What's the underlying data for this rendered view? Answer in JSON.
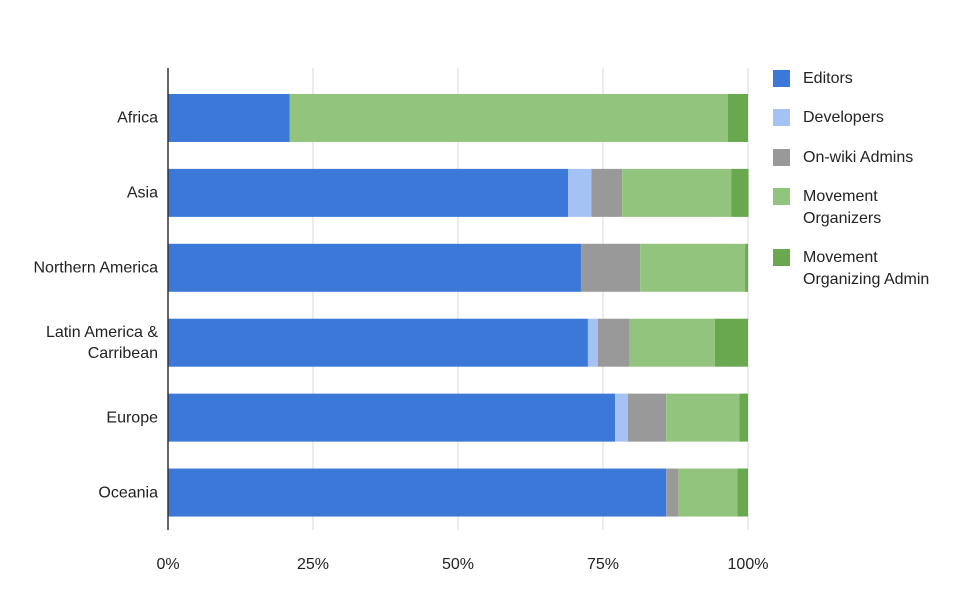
{
  "chart_data": {
    "type": "stacked-bar-horizontal",
    "categories": [
      "Africa",
      "Asia",
      "Northern America",
      "Latin America & Carribean",
      "Europe",
      "Oceania"
    ],
    "series": [
      {
        "name": "Editors",
        "color": "#3c78d8",
        "values": [
          21,
          69,
          71.2,
          72.4,
          77.1,
          85.9
        ]
      },
      {
        "name": "Developers",
        "color": "#a4c2f4",
        "values": [
          0,
          4,
          0,
          1.7,
          2.2,
          0
        ]
      },
      {
        "name": "On-wiki Admins",
        "color": "#999999",
        "values": [
          0,
          5.3,
          10.2,
          5.5,
          6.6,
          2.1
        ]
      },
      {
        "name": "Movement Organizers",
        "color": "#93c47d",
        "values": [
          75.5,
          18.8,
          18.1,
          14.7,
          12.6,
          10.2
        ]
      },
      {
        "name": "Movement Organizing Admin",
        "color": "#6aa84f",
        "values": [
          3.5,
          3,
          0.5,
          5.7,
          1.5,
          1.8
        ]
      }
    ],
    "xlim": [
      0,
      100
    ],
    "xticks": [
      {
        "value": 0,
        "label": "0%"
      },
      {
        "value": 25,
        "label": "25%"
      },
      {
        "value": 50,
        "label": "50%"
      },
      {
        "value": 75,
        "label": "75%"
      },
      {
        "value": 100,
        "label": "100%"
      }
    ],
    "grid": true,
    "legend": "right"
  }
}
